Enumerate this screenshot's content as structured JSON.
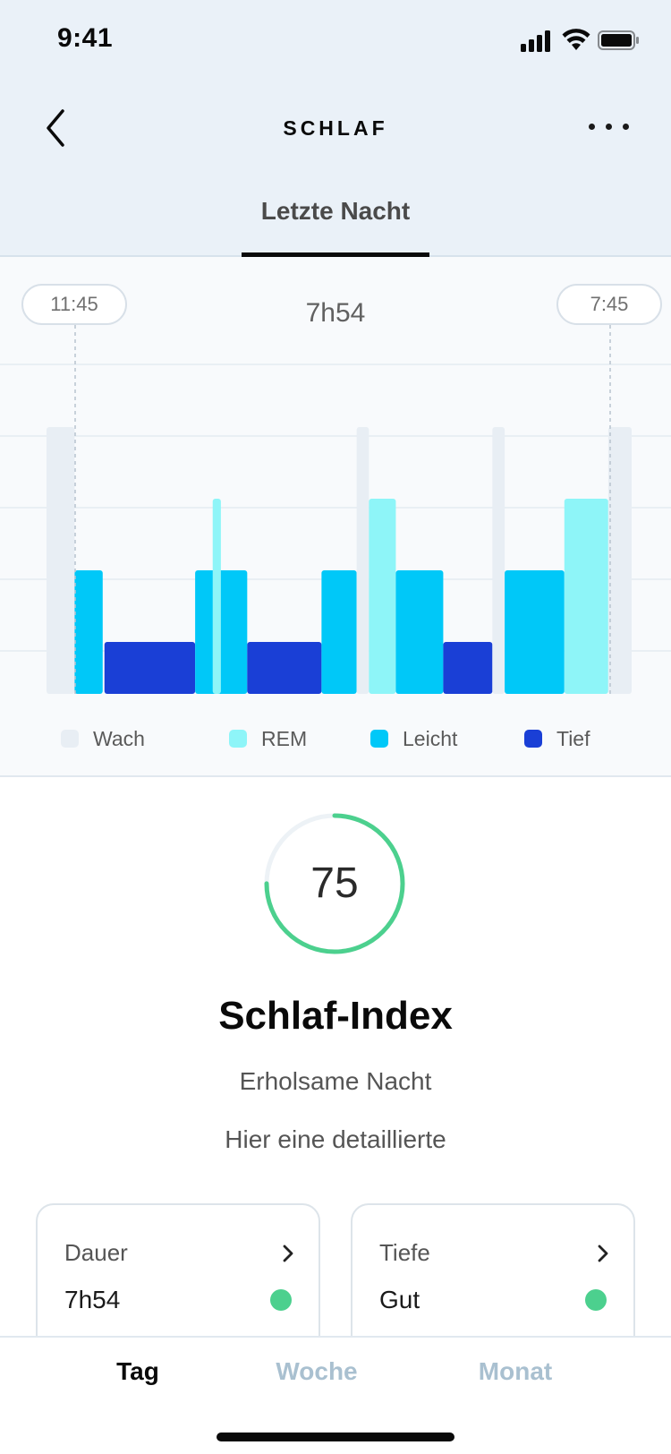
{
  "status_bar": {
    "time": "9:41"
  },
  "nav": {
    "title": "SCHLAF"
  },
  "tabs": {
    "active": "Letzte Nacht"
  },
  "sleep_chart": {
    "start_time": "11:45",
    "end_time": "7:45",
    "total_duration": "7h54",
    "legend": [
      {
        "label": "Wach",
        "color": "#e8eef4"
      },
      {
        "label": "REM",
        "color": "#8ef5f8"
      },
      {
        "label": "Leicht",
        "color": "#00c8f8"
      },
      {
        "label": "Tief",
        "color": "#1a3fd6"
      }
    ]
  },
  "chart_data": {
    "type": "bar",
    "stages": [
      "Tief",
      "Leicht",
      "REM",
      "Wach"
    ],
    "stage_colors": {
      "Wach": "#e8eef4",
      "REM": "#8ef5f8",
      "Leicht": "#00c8f8",
      "Tief": "#1a3fd6"
    },
    "segments": [
      {
        "stage": "Wach",
        "start": 0.0,
        "end": 0.048
      },
      {
        "stage": "Leicht",
        "start": 0.048,
        "end": 0.096
      },
      {
        "stage": "Tief",
        "start": 0.099,
        "end": 0.254
      },
      {
        "stage": "Leicht",
        "start": 0.254,
        "end": 0.343
      },
      {
        "stage": "REM",
        "start": 0.284,
        "end": 0.298
      },
      {
        "stage": "Tief",
        "start": 0.343,
        "end": 0.47
      },
      {
        "stage": "Leicht",
        "start": 0.47,
        "end": 0.53
      },
      {
        "stage": "Wach",
        "start": 0.53,
        "end": 0.551
      },
      {
        "stage": "REM",
        "start": 0.551,
        "end": 0.597
      },
      {
        "stage": "Leicht",
        "start": 0.597,
        "end": 0.678
      },
      {
        "stage": "Tief",
        "start": 0.678,
        "end": 0.762
      },
      {
        "stage": "Wach",
        "start": 0.762,
        "end": 0.783
      },
      {
        "stage": "Leicht",
        "start": 0.783,
        "end": 0.885
      },
      {
        "stage": "REM",
        "start": 0.885,
        "end": 0.96
      },
      {
        "stage": "Wach",
        "start": 0.96,
        "end": 1.0
      }
    ],
    "xlabel": "",
    "ylabel": ""
  },
  "score": {
    "value": "75",
    "progress": 0.75,
    "title": "Schlaf-Index",
    "subtitle": "Erholsame Nacht",
    "description": "Hier eine detaillierte",
    "color": "#4cd08e"
  },
  "cards": [
    {
      "title": "Dauer",
      "value": "7h54",
      "status_color": "#4cd08e"
    },
    {
      "title": "Tiefe",
      "value": "Gut",
      "status_color": "#4cd08e"
    }
  ],
  "bottom_tabs": [
    {
      "label": "Tag",
      "active": true
    },
    {
      "label": "Woche",
      "active": false
    },
    {
      "label": "Monat",
      "active": false
    }
  ]
}
